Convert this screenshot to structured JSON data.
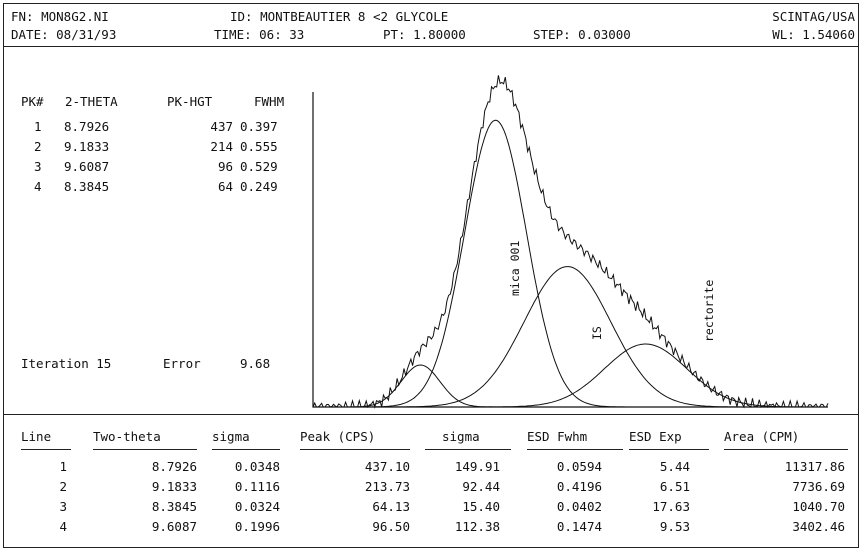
{
  "header": {
    "fn": "FN: MON8G2.NI",
    "id": "ID: MONTBEAUTIER 8 <2 GLYCOLE",
    "inst": "SCINTAG/USA",
    "date": "DATE: 08/31/93",
    "time": "TIME: 06: 33",
    "pt": "PT: 1.80000",
    "step": "STEP: 0.03000",
    "wl": "WL: 1.54060"
  },
  "peaks": {
    "headers": [
      "PK#",
      "2-THETA",
      "PK-HGT",
      "FWHM"
    ],
    "rows": [
      [
        "1",
        "8.7926",
        "437",
        "0.397"
      ],
      [
        "2",
        "9.1833",
        "214",
        "0.555"
      ],
      [
        "3",
        "9.6087",
        "96",
        "0.529"
      ],
      [
        "4",
        "8.3845",
        "64",
        "0.249"
      ]
    ]
  },
  "iteration": {
    "label": "Iteration 15",
    "error_label": "Error",
    "error_value": "9.68"
  },
  "results": {
    "headers": [
      "Line",
      "Two-theta",
      "sigma",
      "Peak (CPS)",
      "sigma",
      "ESD Fwhm",
      "ESD Exp",
      "Area (CPM)"
    ],
    "rows": [
      [
        "1",
        "8.7926",
        "0.0348",
        "437.10",
        "149.91",
        "0.0594",
        "5.44",
        "11317.86"
      ],
      [
        "2",
        "9.1833",
        "0.1116",
        "213.73",
        "92.44",
        "0.4196",
        "6.51",
        "7736.69"
      ],
      [
        "3",
        "8.3845",
        "0.0324",
        "64.13",
        "15.40",
        "0.0402",
        "17.63",
        "1040.70"
      ],
      [
        "4",
        "9.6087",
        "0.1996",
        "96.50",
        "112.38",
        "0.1474",
        "9.53",
        "3402.46"
      ]
    ]
  },
  "chart_data": {
    "type": "line",
    "title": "",
    "xlabel": "",
    "ylabel": "",
    "xlim": [
      7.8,
      10.6
    ],
    "ylim": [
      0,
      480
    ],
    "grid": false,
    "series": [
      {
        "name": "mica 001",
        "center": 8.7926,
        "height": 437,
        "fwhm": 0.397
      },
      {
        "name": "IS",
        "center": 9.1833,
        "height": 214,
        "fwhm": 0.555
      },
      {
        "name": "rectorite",
        "center": 9.6087,
        "height": 96,
        "fwhm": 0.529
      },
      {
        "name": "",
        "center": 8.3845,
        "height": 64,
        "fwhm": 0.249
      }
    ],
    "annotations": [
      "mica 001",
      "IS",
      "rectorite"
    ],
    "colors": {
      "line": "#111111",
      "background": "#ffffff"
    }
  }
}
